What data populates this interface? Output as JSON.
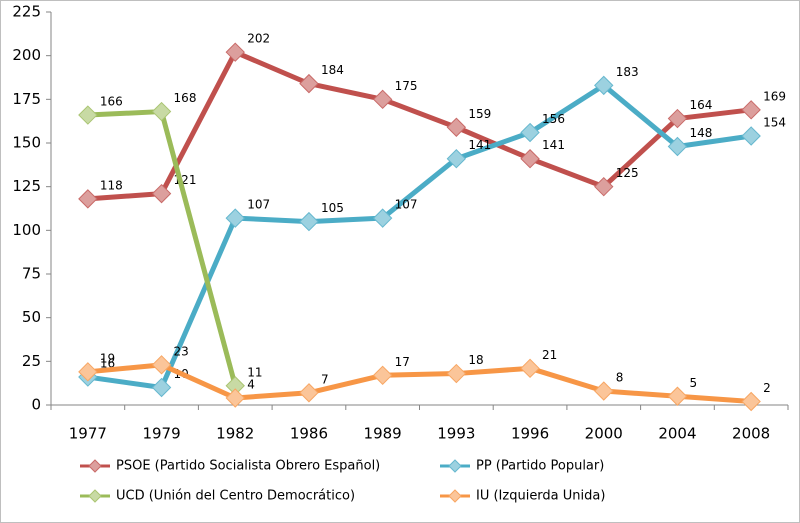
{
  "chart_data": {
    "type": "line",
    "categories": [
      "1977",
      "1979",
      "1982",
      "1986",
      "1989",
      "1993",
      "1996",
      "2000",
      "2004",
      "2008"
    ],
    "series": [
      {
        "name": "PSOE (Partido Socialista Obrero Español)",
        "color": "#c0504d",
        "values": [
          118,
          121,
          202,
          184,
          175,
          159,
          141,
          125,
          164,
          169
        ]
      },
      {
        "name": "PP (Partido Popular)",
        "color": "#4bacc6",
        "values": [
          16,
          10,
          107,
          105,
          107,
          141,
          156,
          183,
          148,
          154
        ]
      },
      {
        "name": "UCD (Unión del Centro Democrático)",
        "color": "#9bbb59",
        "values": [
          166,
          168,
          11,
          null,
          null,
          null,
          null,
          null,
          null,
          null
        ]
      },
      {
        "name": "IU (Izquierda Unida)",
        "color": "#f79646",
        "values": [
          19,
          23,
          4,
          7,
          17,
          18,
          21,
          8,
          5,
          2
        ]
      }
    ],
    "ylim": [
      0,
      225
    ],
    "yticks": [
      0,
      25,
      50,
      75,
      100,
      125,
      150,
      175,
      200,
      225
    ],
    "grid": false,
    "legend": "bottom"
  }
}
